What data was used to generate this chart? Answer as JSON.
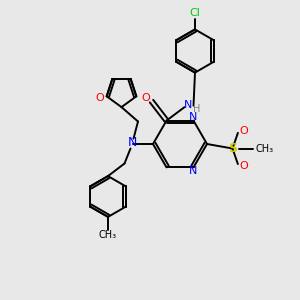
{
  "bg_color": "#e8e8e8",
  "bond_color": "#000000",
  "N_color": "#0000ff",
  "O_color": "#ff0000",
  "S_color": "#cccc00",
  "Cl_color": "#00cc00",
  "NH_color": "#808080",
  "figsize": [
    3.0,
    3.0
  ],
  "dpi": 100,
  "xlim": [
    0,
    10
  ],
  "ylim": [
    0,
    10
  ]
}
